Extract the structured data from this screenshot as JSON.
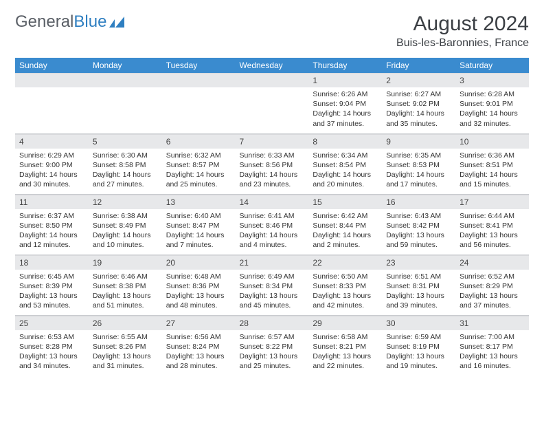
{
  "brand": {
    "part1": "General",
    "part2": "Blue"
  },
  "title": {
    "month": "August 2024",
    "location": "Buis-les-Baronnies, France"
  },
  "colors": {
    "header_bg": "#3a8bcf",
    "header_text": "#ffffff",
    "daynum_bg": "#e7e8ea",
    "text": "#333333",
    "brand_gray": "#5a5f66",
    "brand_blue": "#2f7fc1"
  },
  "weekdays": [
    "Sunday",
    "Monday",
    "Tuesday",
    "Wednesday",
    "Thursday",
    "Friday",
    "Saturday"
  ],
  "weeks": [
    [
      null,
      null,
      null,
      null,
      {
        "n": "1",
        "sr": "6:26 AM",
        "ss": "9:04 PM",
        "dl": "14 hours and 37 minutes."
      },
      {
        "n": "2",
        "sr": "6:27 AM",
        "ss": "9:02 PM",
        "dl": "14 hours and 35 minutes."
      },
      {
        "n": "3",
        "sr": "6:28 AM",
        "ss": "9:01 PM",
        "dl": "14 hours and 32 minutes."
      }
    ],
    [
      {
        "n": "4",
        "sr": "6:29 AM",
        "ss": "9:00 PM",
        "dl": "14 hours and 30 minutes."
      },
      {
        "n": "5",
        "sr": "6:30 AM",
        "ss": "8:58 PM",
        "dl": "14 hours and 27 minutes."
      },
      {
        "n": "6",
        "sr": "6:32 AM",
        "ss": "8:57 PM",
        "dl": "14 hours and 25 minutes."
      },
      {
        "n": "7",
        "sr": "6:33 AM",
        "ss": "8:56 PM",
        "dl": "14 hours and 23 minutes."
      },
      {
        "n": "8",
        "sr": "6:34 AM",
        "ss": "8:54 PM",
        "dl": "14 hours and 20 minutes."
      },
      {
        "n": "9",
        "sr": "6:35 AM",
        "ss": "8:53 PM",
        "dl": "14 hours and 17 minutes."
      },
      {
        "n": "10",
        "sr": "6:36 AM",
        "ss": "8:51 PM",
        "dl": "14 hours and 15 minutes."
      }
    ],
    [
      {
        "n": "11",
        "sr": "6:37 AM",
        "ss": "8:50 PM",
        "dl": "14 hours and 12 minutes."
      },
      {
        "n": "12",
        "sr": "6:38 AM",
        "ss": "8:49 PM",
        "dl": "14 hours and 10 minutes."
      },
      {
        "n": "13",
        "sr": "6:40 AM",
        "ss": "8:47 PM",
        "dl": "14 hours and 7 minutes."
      },
      {
        "n": "14",
        "sr": "6:41 AM",
        "ss": "8:46 PM",
        "dl": "14 hours and 4 minutes."
      },
      {
        "n": "15",
        "sr": "6:42 AM",
        "ss": "8:44 PM",
        "dl": "14 hours and 2 minutes."
      },
      {
        "n": "16",
        "sr": "6:43 AM",
        "ss": "8:42 PM",
        "dl": "13 hours and 59 minutes."
      },
      {
        "n": "17",
        "sr": "6:44 AM",
        "ss": "8:41 PM",
        "dl": "13 hours and 56 minutes."
      }
    ],
    [
      {
        "n": "18",
        "sr": "6:45 AM",
        "ss": "8:39 PM",
        "dl": "13 hours and 53 minutes."
      },
      {
        "n": "19",
        "sr": "6:46 AM",
        "ss": "8:38 PM",
        "dl": "13 hours and 51 minutes."
      },
      {
        "n": "20",
        "sr": "6:48 AM",
        "ss": "8:36 PM",
        "dl": "13 hours and 48 minutes."
      },
      {
        "n": "21",
        "sr": "6:49 AM",
        "ss": "8:34 PM",
        "dl": "13 hours and 45 minutes."
      },
      {
        "n": "22",
        "sr": "6:50 AM",
        "ss": "8:33 PM",
        "dl": "13 hours and 42 minutes."
      },
      {
        "n": "23",
        "sr": "6:51 AM",
        "ss": "8:31 PM",
        "dl": "13 hours and 39 minutes."
      },
      {
        "n": "24",
        "sr": "6:52 AM",
        "ss": "8:29 PM",
        "dl": "13 hours and 37 minutes."
      }
    ],
    [
      {
        "n": "25",
        "sr": "6:53 AM",
        "ss": "8:28 PM",
        "dl": "13 hours and 34 minutes."
      },
      {
        "n": "26",
        "sr": "6:55 AM",
        "ss": "8:26 PM",
        "dl": "13 hours and 31 minutes."
      },
      {
        "n": "27",
        "sr": "6:56 AM",
        "ss": "8:24 PM",
        "dl": "13 hours and 28 minutes."
      },
      {
        "n": "28",
        "sr": "6:57 AM",
        "ss": "8:22 PM",
        "dl": "13 hours and 25 minutes."
      },
      {
        "n": "29",
        "sr": "6:58 AM",
        "ss": "8:21 PM",
        "dl": "13 hours and 22 minutes."
      },
      {
        "n": "30",
        "sr": "6:59 AM",
        "ss": "8:19 PM",
        "dl": "13 hours and 19 minutes."
      },
      {
        "n": "31",
        "sr": "7:00 AM",
        "ss": "8:17 PM",
        "dl": "13 hours and 16 minutes."
      }
    ]
  ],
  "labels": {
    "sunrise": "Sunrise: ",
    "sunset": "Sunset: ",
    "daylight": "Daylight: "
  }
}
